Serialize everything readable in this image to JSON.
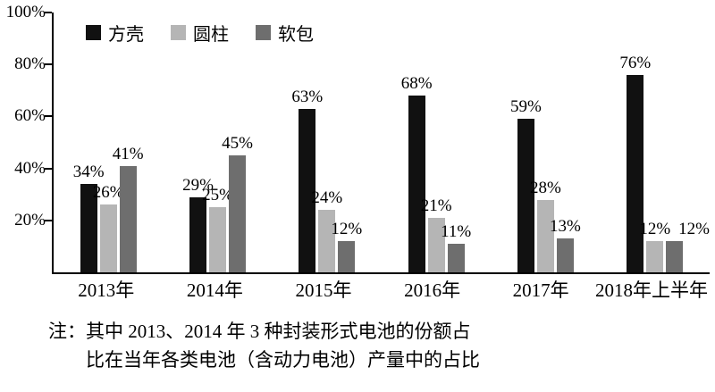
{
  "chart_data": {
    "type": "bar",
    "title": "",
    "unit": "%",
    "categories": [
      "2013年",
      "2014年",
      "2015年",
      "2016年",
      "2017年",
      "2018年上半年"
    ],
    "series": [
      {
        "name": "方壳",
        "color": "#111111",
        "values": [
          34,
          29,
          63,
          68,
          59,
          76
        ]
      },
      {
        "name": "圆柱",
        "color": "#b5b5b5",
        "values": [
          26,
          25,
          24,
          21,
          28,
          12
        ]
      },
      {
        "name": "软包",
        "color": "#6e6e6e",
        "values": [
          41,
          45,
          12,
          11,
          13,
          12
        ]
      }
    ],
    "ylim": [
      0,
      100
    ],
    "yticks": [
      20,
      40,
      60,
      80,
      100
    ],
    "ytick_labels": [
      "20%",
      "40%",
      "60%",
      "80%",
      "100%"
    ],
    "legend_position": "top-left",
    "grid": false,
    "axis_color": "#000000"
  },
  "note": {
    "line1": "注：其中 2013、2014 年 3 种封装形式电池的份额占",
    "line2": "比在当年各类电池（含动力电池）产量中的占比"
  }
}
